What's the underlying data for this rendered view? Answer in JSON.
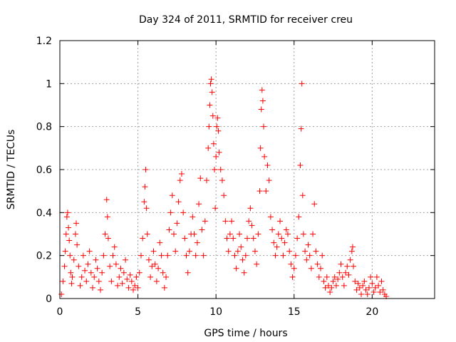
{
  "chart_data": {
    "type": "scatter",
    "title": "Day 324 of 2011, SRMTID for receiver creu",
    "xlabel": "GPS time / hours",
    "ylabel": "SRMTID / TECUs",
    "xlim": [
      0,
      24
    ],
    "ylim": [
      0,
      1.2
    ],
    "x_ticks": [
      0,
      5,
      10,
      15,
      20
    ],
    "x_tick_labels": [
      "0",
      "5",
      "10",
      "15",
      "20"
    ],
    "y_ticks": [
      0,
      0.2,
      0.4,
      0.6,
      0.8,
      1.0,
      1.2
    ],
    "y_tick_labels": [
      "0",
      "0.2",
      "0.4",
      "0.6",
      "0.8",
      "1",
      "1.2"
    ],
    "grid": true,
    "marker": "plus",
    "marker_color": "#ff0000",
    "series": [
      {
        "points": [
          [
            0.1,
            0.02
          ],
          [
            0.2,
            0.08
          ],
          [
            0.3,
            0.15
          ],
          [
            0.35,
            0.22
          ],
          [
            0.4,
            0.3
          ],
          [
            0.45,
            0.38
          ],
          [
            0.5,
            0.4
          ],
          [
            0.55,
            0.33
          ],
          [
            0.6,
            0.27
          ],
          [
            0.65,
            0.2
          ],
          [
            0.7,
            0.12
          ],
          [
            0.75,
            0.07
          ],
          [
            0.8,
            0.1
          ],
          [
            0.9,
            0.18
          ],
          [
            1.0,
            0.3
          ],
          [
            1.05,
            0.35
          ],
          [
            1.1,
            0.25
          ],
          [
            1.2,
            0.15
          ],
          [
            1.3,
            0.06
          ],
          [
            1.4,
            0.1
          ],
          [
            1.5,
            0.2
          ],
          [
            1.6,
            0.13
          ],
          [
            1.7,
            0.08
          ],
          [
            1.8,
            0.16
          ],
          [
            1.9,
            0.22
          ],
          [
            2.0,
            0.12
          ],
          [
            2.1,
            0.05
          ],
          [
            2.2,
            0.1
          ],
          [
            2.3,
            0.18
          ],
          [
            2.4,
            0.14
          ],
          [
            2.5,
            0.08
          ],
          [
            2.6,
            0.04
          ],
          [
            2.7,
            0.12
          ],
          [
            2.8,
            0.2
          ],
          [
            2.9,
            0.3
          ],
          [
            3.0,
            0.46
          ],
          [
            3.05,
            0.38
          ],
          [
            3.1,
            0.28
          ],
          [
            3.2,
            0.15
          ],
          [
            3.3,
            0.08
          ],
          [
            3.4,
            0.2
          ],
          [
            3.5,
            0.24
          ],
          [
            3.6,
            0.16
          ],
          [
            3.7,
            0.06
          ],
          [
            3.8,
            0.1
          ],
          [
            3.9,
            0.14
          ],
          [
            4.0,
            0.07
          ],
          [
            4.1,
            0.12
          ],
          [
            4.2,
            0.18
          ],
          [
            4.3,
            0.09
          ],
          [
            4.4,
            0.05
          ],
          [
            4.5,
            0.11
          ],
          [
            4.6,
            0.08
          ],
          [
            4.7,
            0.04
          ],
          [
            4.8,
            0.06
          ],
          [
            4.9,
            0.1
          ],
          [
            5.0,
            0.05
          ],
          [
            5.1,
            0.12
          ],
          [
            5.2,
            0.2
          ],
          [
            5.3,
            0.28
          ],
          [
            5.4,
            0.45
          ],
          [
            5.45,
            0.52
          ],
          [
            5.5,
            0.6
          ],
          [
            5.55,
            0.42
          ],
          [
            5.6,
            0.3
          ],
          [
            5.7,
            0.18
          ],
          [
            5.8,
            0.1
          ],
          [
            5.9,
            0.15
          ],
          [
            6.0,
            0.22
          ],
          [
            6.1,
            0.16
          ],
          [
            6.2,
            0.08
          ],
          [
            6.3,
            0.14
          ],
          [
            6.4,
            0.26
          ],
          [
            6.5,
            0.2
          ],
          [
            6.6,
            0.12
          ],
          [
            6.7,
            0.05
          ],
          [
            6.8,
            0.1
          ],
          [
            6.9,
            0.2
          ],
          [
            7.0,
            0.32
          ],
          [
            7.1,
            0.4
          ],
          [
            7.2,
            0.48
          ],
          [
            7.3,
            0.3
          ],
          [
            7.4,
            0.22
          ],
          [
            7.5,
            0.35
          ],
          [
            7.6,
            0.45
          ],
          [
            7.7,
            0.55
          ],
          [
            7.8,
            0.58
          ],
          [
            7.9,
            0.4
          ],
          [
            8.0,
            0.28
          ],
          [
            8.1,
            0.2
          ],
          [
            8.2,
            0.12
          ],
          [
            8.3,
            0.22
          ],
          [
            8.4,
            0.3
          ],
          [
            8.5,
            0.38
          ],
          [
            8.6,
            0.3
          ],
          [
            8.7,
            0.2
          ],
          [
            8.8,
            0.26
          ],
          [
            8.9,
            0.44
          ],
          [
            9.0,
            0.56
          ],
          [
            9.1,
            0.32
          ],
          [
            9.2,
            0.2
          ],
          [
            9.3,
            0.36
          ],
          [
            9.4,
            0.55
          ],
          [
            9.5,
            0.7
          ],
          [
            9.55,
            0.8
          ],
          [
            9.6,
            0.9
          ],
          [
            9.65,
            1.0
          ],
          [
            9.7,
            1.02
          ],
          [
            9.75,
            0.96
          ],
          [
            9.8,
            0.85
          ],
          [
            9.85,
            0.72
          ],
          [
            9.9,
            0.6
          ],
          [
            9.95,
            0.42
          ],
          [
            10.0,
            0.66
          ],
          [
            10.05,
            0.8
          ],
          [
            10.1,
            0.84
          ],
          [
            10.15,
            0.78
          ],
          [
            10.2,
            0.68
          ],
          [
            10.3,
            0.6
          ],
          [
            10.4,
            0.55
          ],
          [
            10.5,
            0.48
          ],
          [
            10.6,
            0.36
          ],
          [
            10.7,
            0.28
          ],
          [
            10.8,
            0.22
          ],
          [
            10.9,
            0.3
          ],
          [
            11.0,
            0.36
          ],
          [
            11.1,
            0.28
          ],
          [
            11.2,
            0.2
          ],
          [
            11.3,
            0.14
          ],
          [
            11.4,
            0.22
          ],
          [
            11.5,
            0.3
          ],
          [
            11.6,
            0.24
          ],
          [
            11.7,
            0.18
          ],
          [
            11.8,
            0.12
          ],
          [
            11.9,
            0.2
          ],
          [
            12.0,
            0.28
          ],
          [
            12.1,
            0.36
          ],
          [
            12.2,
            0.42
          ],
          [
            12.3,
            0.34
          ],
          [
            12.4,
            0.28
          ],
          [
            12.5,
            0.22
          ],
          [
            12.6,
            0.16
          ],
          [
            12.7,
            0.3
          ],
          [
            12.8,
            0.5
          ],
          [
            12.85,
            0.7
          ],
          [
            12.9,
            0.88
          ],
          [
            12.95,
            0.97
          ],
          [
            13.0,
            0.92
          ],
          [
            13.05,
            0.8
          ],
          [
            13.1,
            0.66
          ],
          [
            13.2,
            0.5
          ],
          [
            13.3,
            0.62
          ],
          [
            13.4,
            0.55
          ],
          [
            13.5,
            0.38
          ],
          [
            13.6,
            0.32
          ],
          [
            13.7,
            0.26
          ],
          [
            13.8,
            0.2
          ],
          [
            13.9,
            0.24
          ],
          [
            14.0,
            0.3
          ],
          [
            14.1,
            0.36
          ],
          [
            14.2,
            0.28
          ],
          [
            14.3,
            0.2
          ],
          [
            14.4,
            0.26
          ],
          [
            14.5,
            0.32
          ],
          [
            14.6,
            0.3
          ],
          [
            14.7,
            0.22
          ],
          [
            14.8,
            0.16
          ],
          [
            14.9,
            0.1
          ],
          [
            15.0,
            0.14
          ],
          [
            15.1,
            0.2
          ],
          [
            15.2,
            0.28
          ],
          [
            15.3,
            0.38
          ],
          [
            15.4,
            0.62
          ],
          [
            15.45,
            0.79
          ],
          [
            15.5,
            1.0
          ],
          [
            15.55,
            0.48
          ],
          [
            15.6,
            0.3
          ],
          [
            15.7,
            0.22
          ],
          [
            15.8,
            0.18
          ],
          [
            15.9,
            0.25
          ],
          [
            16.0,
            0.2
          ],
          [
            16.1,
            0.14
          ],
          [
            16.2,
            0.3
          ],
          [
            16.3,
            0.44
          ],
          [
            16.4,
            0.22
          ],
          [
            16.5,
            0.16
          ],
          [
            16.6,
            0.1
          ],
          [
            16.7,
            0.14
          ],
          [
            16.8,
            0.2
          ],
          [
            16.9,
            0.08
          ],
          [
            17.0,
            0.05
          ],
          [
            17.1,
            0.1
          ],
          [
            17.2,
            0.06
          ],
          [
            17.3,
            0.03
          ],
          [
            17.4,
            0.05
          ],
          [
            17.5,
            0.08
          ],
          [
            17.6,
            0.1
          ],
          [
            17.7,
            0.06
          ],
          [
            17.8,
            0.09
          ],
          [
            17.9,
            0.12
          ],
          [
            18.0,
            0.16
          ],
          [
            18.1,
            0.1
          ],
          [
            18.2,
            0.06
          ],
          [
            18.3,
            0.12
          ],
          [
            18.4,
            0.15
          ],
          [
            18.5,
            0.11
          ],
          [
            18.6,
            0.18
          ],
          [
            18.7,
            0.22
          ],
          [
            18.75,
            0.24
          ],
          [
            18.8,
            0.15
          ],
          [
            18.9,
            0.08
          ],
          [
            19.0,
            0.04
          ],
          [
            19.1,
            0.07
          ],
          [
            19.2,
            0.05
          ],
          [
            19.3,
            0.02
          ],
          [
            19.4,
            0.06
          ],
          [
            19.5,
            0.08
          ],
          [
            19.6,
            0.04
          ],
          [
            19.7,
            0.02
          ],
          [
            19.8,
            0.05
          ],
          [
            19.9,
            0.1
          ],
          [
            20.0,
            0.07
          ],
          [
            20.1,
            0.03
          ],
          [
            20.2,
            0.05
          ],
          [
            20.3,
            0.1
          ],
          [
            20.4,
            0.06
          ],
          [
            20.5,
            0.03
          ],
          [
            20.6,
            0.08
          ],
          [
            20.7,
            0.04
          ],
          [
            20.8,
            0.02
          ],
          [
            20.9,
            0.01
          ]
        ]
      }
    ]
  }
}
